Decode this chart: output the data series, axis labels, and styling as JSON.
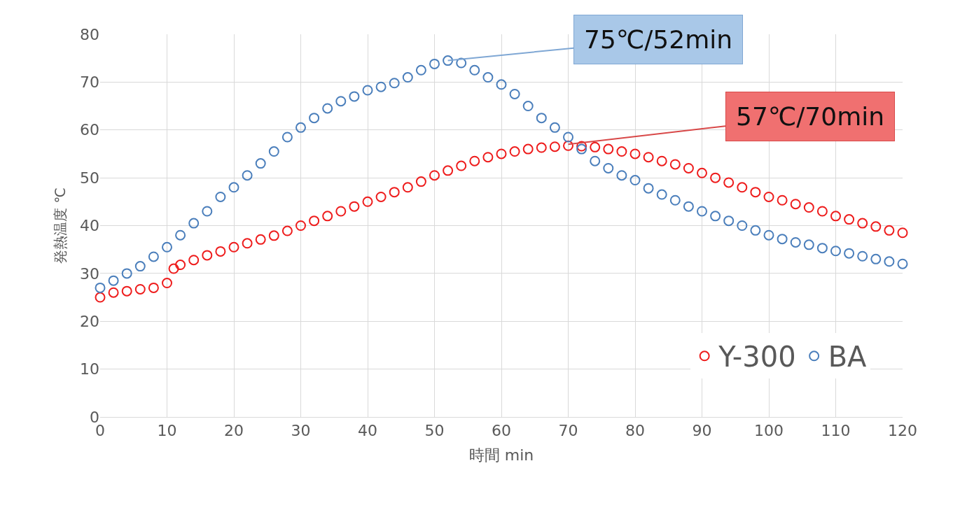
{
  "chart_data": {
    "type": "scatter",
    "xlabel": "時間 min",
    "ylabel": "発熱温度 ℃",
    "xlim": [
      0,
      120
    ],
    "xticks": [
      0,
      10,
      20,
      30,
      40,
      50,
      60,
      70,
      80,
      90,
      100,
      110,
      120
    ],
    "ylim": [
      0,
      80
    ],
    "yticks": [
      0,
      10,
      20,
      30,
      40,
      50,
      60,
      70,
      80
    ],
    "grid": true,
    "legend": "bottom right",
    "marker": "circle",
    "series": [
      {
        "name": "Y-300",
        "color": "#ee1c1c",
        "x": [
          0,
          2,
          4,
          6,
          8,
          10,
          11,
          12,
          14,
          16,
          18,
          20,
          22,
          24,
          26,
          28,
          30,
          32,
          34,
          36,
          38,
          40,
          42,
          44,
          46,
          48,
          50,
          52,
          54,
          56,
          58,
          60,
          62,
          64,
          66,
          68,
          70,
          72,
          74,
          76,
          78,
          80,
          82,
          84,
          86,
          88,
          90,
          92,
          94,
          96,
          98,
          100,
          102,
          104,
          106,
          108,
          110,
          112,
          114,
          116,
          118,
          120
        ],
        "values": [
          25,
          26,
          26.3,
          26.7,
          27,
          28,
          31,
          31.8,
          32.8,
          33.8,
          34.6,
          35.5,
          36.3,
          37.1,
          37.9,
          38.9,
          40,
          41,
          42,
          43,
          44,
          45,
          46,
          47,
          48,
          49.2,
          50.5,
          51.5,
          52.5,
          53.5,
          54.3,
          55,
          55.5,
          56,
          56.3,
          56.5,
          56.7,
          56.6,
          56.4,
          56,
          55.5,
          55,
          54.3,
          53.5,
          52.8,
          52,
          51,
          50,
          49,
          48,
          47,
          46,
          45.3,
          44.5,
          43.8,
          43,
          42,
          41.3,
          40.5,
          39.8,
          39,
          38.5
        ]
      },
      {
        "name": "BA",
        "color": "#4a7ebb",
        "x": [
          0,
          2,
          4,
          6,
          8,
          10,
          12,
          14,
          16,
          18,
          20,
          22,
          24,
          26,
          28,
          30,
          32,
          34,
          36,
          38,
          40,
          42,
          44,
          46,
          48,
          50,
          52,
          54,
          56,
          58,
          60,
          62,
          64,
          66,
          68,
          70,
          72,
          74,
          76,
          78,
          80,
          82,
          84,
          86,
          88,
          90,
          92,
          94,
          96,
          98,
          100,
          102,
          104,
          106,
          108,
          110,
          112,
          114,
          116,
          118,
          120
        ],
        "values": [
          27,
          28.5,
          30,
          31.5,
          33.5,
          35.5,
          38,
          40.5,
          43,
          46,
          48,
          50.5,
          53,
          55.5,
          58.5,
          60.5,
          62.5,
          64.5,
          66,
          67,
          68.3,
          69,
          69.8,
          71,
          72.5,
          73.8,
          74.5,
          74,
          72.5,
          71,
          69.5,
          67.5,
          65,
          62.5,
          60.5,
          58.5,
          56,
          53.5,
          52,
          50.5,
          49.5,
          47.8,
          46.5,
          45.3,
          44,
          43,
          42,
          41,
          40,
          39,
          38,
          37.2,
          36.5,
          36,
          35.3,
          34.7,
          34.2,
          33.6,
          33,
          32.5,
          32
        ]
      }
    ],
    "annotations": [
      {
        "text": "75℃/52min",
        "x": 52,
        "y": 74.5
      },
      {
        "text": "57℃/70min",
        "x": 70,
        "y": 57
      }
    ]
  }
}
